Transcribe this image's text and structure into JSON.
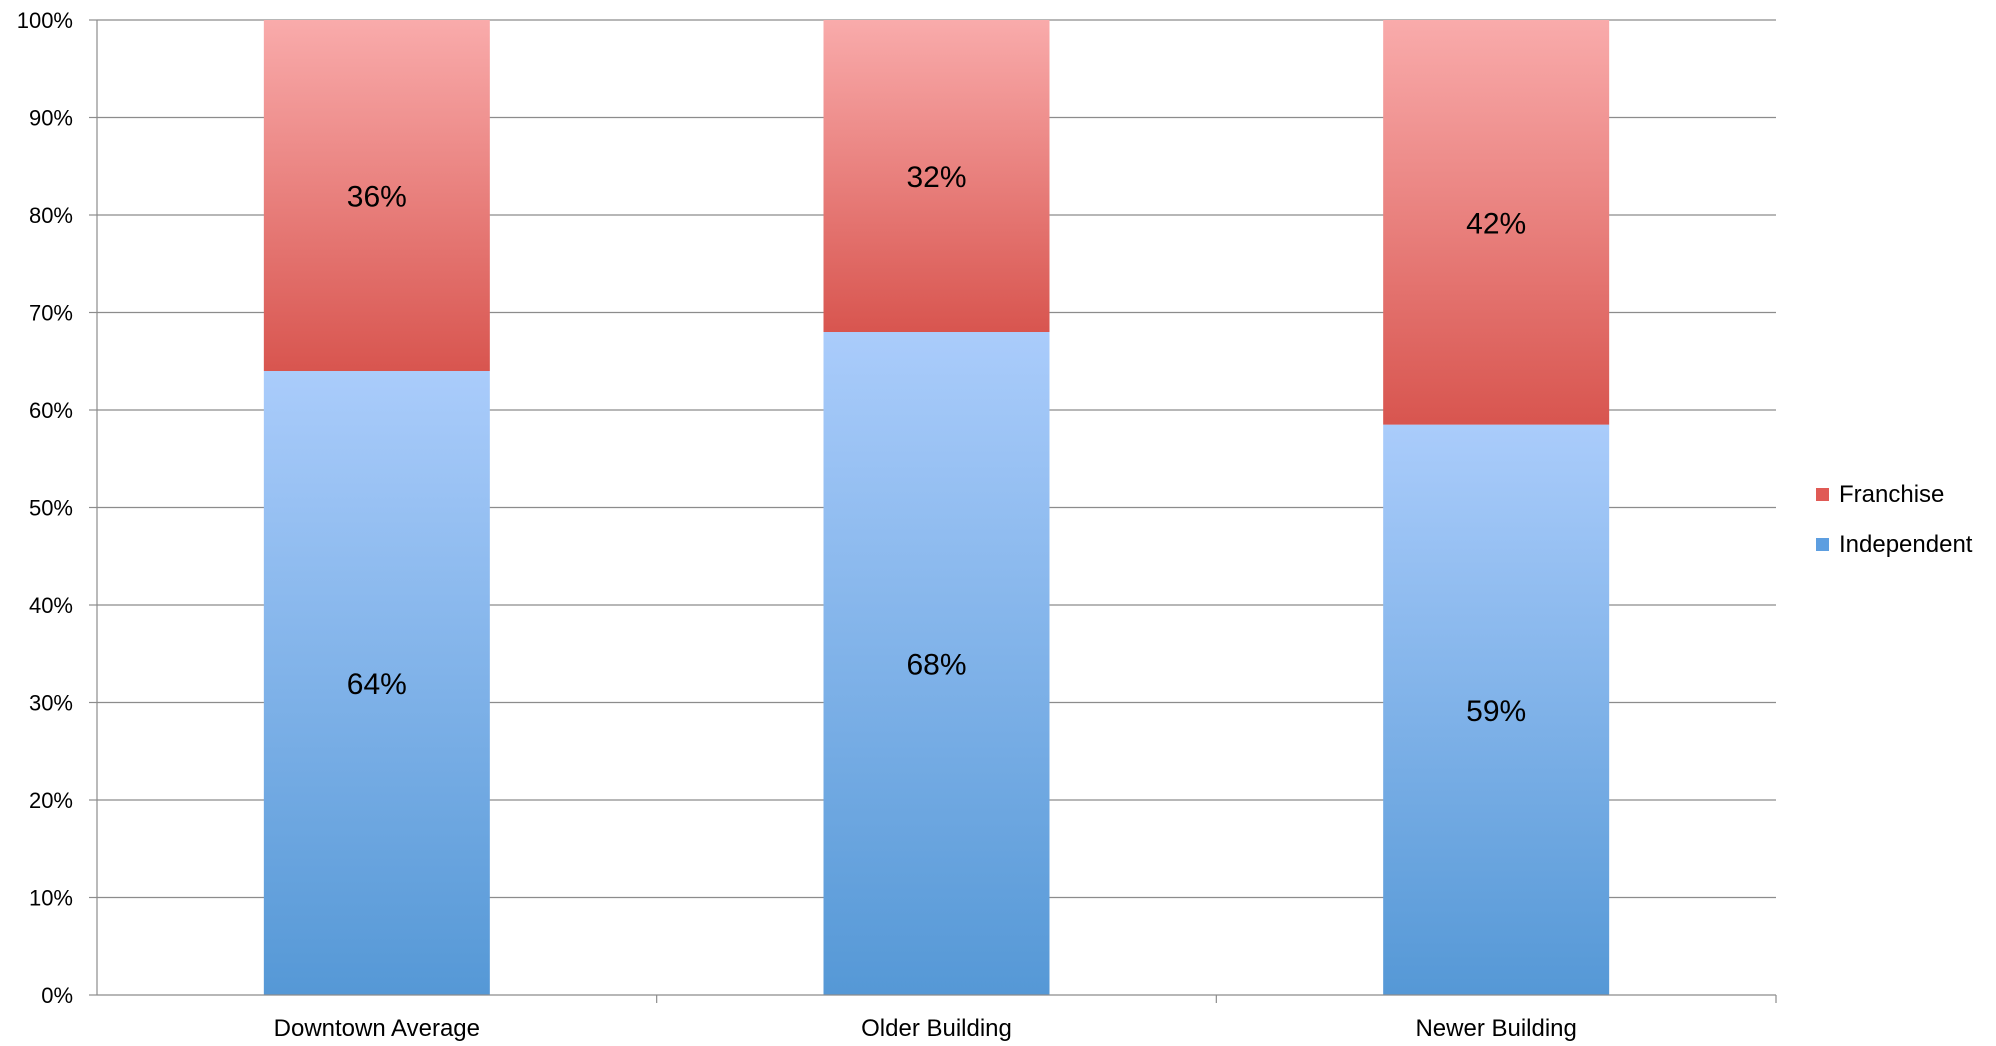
{
  "chart_data": {
    "type": "bar",
    "stacked": true,
    "percent": true,
    "categories": [
      "Downtown Average",
      "Older Building",
      "Newer Building"
    ],
    "series": [
      {
        "name": "Independent",
        "values": [
          64,
          68,
          58.5
        ],
        "labels": [
          "64%",
          "68%",
          "59%"
        ],
        "color": "#5b9bd5"
      },
      {
        "name": "Franchise",
        "values": [
          36,
          32,
          41.5
        ],
        "labels": [
          "36%",
          "32%",
          "42%"
        ],
        "color": "#d9534f"
      }
    ],
    "yticks": [
      "0%",
      "10%",
      "20%",
      "30%",
      "40%",
      "50%",
      "60%",
      "70%",
      "80%",
      "90%",
      "100%"
    ],
    "ylim": [
      0,
      100
    ],
    "grid": true,
    "legend_position": "right",
    "legend_order": [
      "Franchise",
      "Independent"
    ]
  }
}
